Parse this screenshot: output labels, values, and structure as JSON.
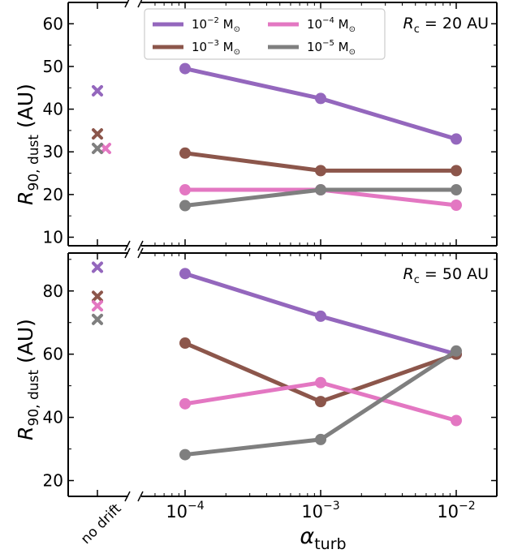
{
  "figure": {
    "shared_xlabel": "α",
    "shared_xlabel_sub": "turb",
    "shared_ylabel_main": "R",
    "shared_ylabel_sub": "90, dust",
    "shared_ylabel_unit": " (AU)",
    "nodrift_label": "no drift",
    "xtick_labels": [
      {
        "base": "10",
        "exp": "−4"
      },
      {
        "base": "10",
        "exp": "−3"
      },
      {
        "base": "10",
        "exp": "−2"
      }
    ]
  },
  "legend": {
    "entries": [
      {
        "base": "10",
        "exp": "−2",
        "unit": " M",
        "sub": "⊙",
        "color": "#9467bd"
      },
      {
        "base": "10",
        "exp": "−3",
        "unit": " M",
        "sub": "⊙",
        "color": "#8c564b"
      },
      {
        "base": "10",
        "exp": "−4",
        "unit": " M",
        "sub": "⊙",
        "color": "#e377c2"
      },
      {
        "base": "10",
        "exp": "−5",
        "unit": " M",
        "sub": "⊙",
        "color": "#7f7f7f"
      }
    ]
  },
  "chart_data": [
    {
      "type": "line",
      "annotation": {
        "symbol": "R",
        "sub": "c",
        "value": " = 20 AU"
      },
      "x": [
        0.0001,
        0.001,
        0.01
      ],
      "xscale": "log",
      "xlabel": "α_turb",
      "ylabel": "R_90,dust (AU)",
      "ylim": [
        8,
        65
      ],
      "yticks": [
        10,
        20,
        30,
        40,
        50,
        60
      ],
      "series": [
        {
          "name": "10^-2 M_sun",
          "color": "#9467bd",
          "values": [
            49.5,
            42.5,
            33.0
          ],
          "no_drift": 44.3
        },
        {
          "name": "10^-3 M_sun",
          "color": "#8c564b",
          "values": [
            29.7,
            25.6,
            25.6
          ],
          "no_drift": 34.2
        },
        {
          "name": "10^-4 M_sun",
          "color": "#e377c2",
          "values": [
            21.1,
            21.1,
            17.5
          ],
          "no_drift": 30.8
        },
        {
          "name": "10^-5 M_sun",
          "color": "#7f7f7f",
          "values": [
            17.4,
            21.1,
            21.1
          ],
          "no_drift": 30.8
        }
      ]
    },
    {
      "type": "line",
      "annotation": {
        "symbol": "R",
        "sub": "c",
        "value": " = 50 AU"
      },
      "x": [
        0.0001,
        0.001,
        0.01
      ],
      "xscale": "log",
      "xlabel": "α_turb",
      "ylabel": "R_90,dust (AU)",
      "ylim": [
        15,
        92
      ],
      "yticks": [
        20,
        40,
        60,
        80
      ],
      "series": [
        {
          "name": "10^-2 M_sun",
          "color": "#9467bd",
          "values": [
            85.5,
            72.0,
            60.0
          ],
          "no_drift": 87.5
        },
        {
          "name": "10^-3 M_sun",
          "color": "#8c564b",
          "values": [
            63.5,
            45.0,
            60.0
          ],
          "no_drift": 78.3
        },
        {
          "name": "10^-4 M_sun",
          "color": "#e377c2",
          "values": [
            44.3,
            51.0,
            39.0
          ],
          "no_drift": 75.3
        },
        {
          "name": "10^-5 M_sun",
          "color": "#7f7f7f",
          "values": [
            28.2,
            33.0,
            61.0
          ],
          "no_drift": 71.0
        }
      ]
    }
  ]
}
